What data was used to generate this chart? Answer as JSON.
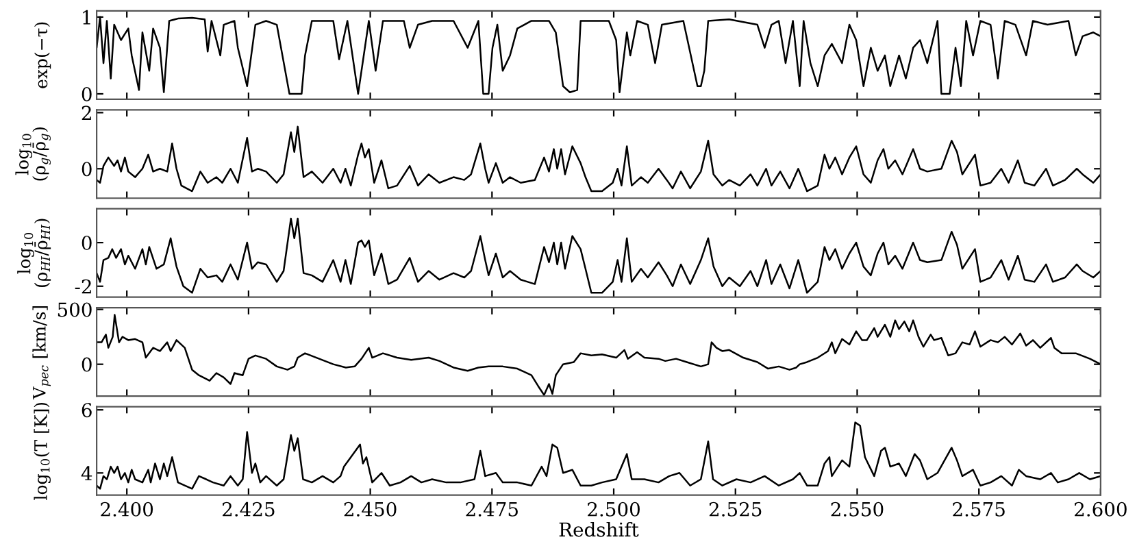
{
  "chart_data": [
    {
      "type": "line",
      "ylabel": "exp(−τ)",
      "xlim": [
        2.3938,
        2.6
      ],
      "ylim": [
        -0.07,
        1.08
      ],
      "yticks": [
        0,
        1
      ],
      "tick_labels": "y",
      "xticks": [
        {
          "value": 2.4,
          "label": null
        },
        {
          "value": 2.425,
          "label": null
        },
        {
          "value": 2.45,
          "label": null
        },
        {
          "value": 2.475,
          "label": null
        },
        {
          "value": 2.5,
          "label": null
        },
        {
          "value": 2.525,
          "label": null
        },
        {
          "value": 2.55,
          "label": null
        },
        {
          "value": 2.575,
          "label": null
        },
        {
          "value": 2.6,
          "label": null
        }
      ],
      "series": [
        {
          "color": "#000000",
          "x": [
            2.3938,
            2.3945,
            2.3952,
            2.3959,
            2.3967,
            2.3974,
            2.3988,
            2.4003,
            2.401,
            2.4025,
            2.4032,
            2.4046,
            2.4054,
            2.4068,
            2.4076,
            2.4087,
            2.4105,
            2.4134,
            2.416,
            2.4166,
            2.4174,
            2.4192,
            2.4199,
            2.4221,
            2.4228,
            2.4247,
            2.4264,
            2.4286,
            2.4308,
            2.4334,
            2.4359,
            2.4366,
            2.438,
            2.4424,
            2.4436,
            2.4453,
            2.4475,
            2.4497,
            2.4511,
            2.4526,
            2.4569,
            2.4581,
            2.4598,
            2.4627,
            2.4671,
            2.47,
            2.4722,
            2.4732,
            2.4743,
            2.4751,
            2.4761,
            2.4772,
            2.4787,
            2.4802,
            2.4831,
            2.4867,
            2.4881,
            2.4896,
            2.491,
            2.4925,
            2.4932,
            2.499,
            2.5005,
            2.5012,
            2.5027,
            2.5034,
            2.5048,
            2.507,
            2.5085,
            2.5099,
            2.5143,
            2.5172,
            2.5179,
            2.5186,
            2.5194,
            2.5237,
            2.5295,
            2.531,
            2.5324,
            2.5339,
            2.5353,
            2.5368,
            2.5382,
            2.539,
            2.5404,
            2.5419,
            2.5433,
            2.5448,
            2.5469,
            2.5484,
            2.5498,
            2.5513,
            2.5528,
            2.5542,
            2.5557,
            2.5568,
            2.5586,
            2.56,
            2.5615,
            2.5629,
            2.5644,
            2.5665,
            2.5673,
            2.569,
            2.5702,
            2.5713,
            2.5724,
            2.5738,
            2.5753,
            2.5774,
            2.5789,
            2.5803,
            2.5825,
            2.5847,
            2.5861,
            2.5891,
            2.5934,
            2.5949,
            2.5963,
            2.5985,
            2.6
          ],
          "values": [
            0.6,
            1.0,
            0.4,
            0.95,
            0.2,
            0.9,
            0.7,
            0.85,
            0.5,
            0.05,
            0.8,
            0.3,
            0.85,
            0.6,
            0.02,
            0.95,
            0.98,
            0.99,
            0.97,
            0.55,
            0.95,
            0.5,
            0.9,
            0.95,
            0.6,
            0.1,
            0.9,
            0.95,
            0.9,
            0,
            0,
            0.5,
            0.95,
            0.95,
            0.45,
            0.95,
            0,
            0.95,
            0.3,
            0.95,
            0.95,
            0.6,
            0.9,
            0.95,
            0.95,
            0.6,
            0.95,
            0,
            0,
            0.6,
            0.9,
            0.3,
            0.5,
            0.85,
            0.95,
            0.95,
            0.8,
            0.1,
            0.02,
            0.05,
            0.95,
            0.95,
            0.7,
            0.02,
            0.8,
            0.5,
            0.95,
            0.9,
            0.4,
            0.9,
            0.95,
            0.1,
            0.1,
            0.3,
            0.95,
            0.97,
            0.9,
            0.6,
            0.9,
            0.95,
            0.4,
            0.95,
            0.1,
            0.95,
            0.4,
            0.1,
            0.5,
            0.65,
            0.4,
            0.9,
            0.7,
            0.1,
            0.6,
            0.3,
            0.5,
            0.1,
            0.5,
            0.2,
            0.6,
            0.7,
            0.4,
            0.95,
            0,
            0,
            0.6,
            0.1,
            0.95,
            0.5,
            0.95,
            0.9,
            0.2,
            0.95,
            0.9,
            0.5,
            0.95,
            0.9,
            0.95,
            0.5,
            0.75,
            0.8,
            0.75
          ]
        }
      ]
    },
    {
      "type": "line",
      "ylabel": "log$_{10}$\n(ρ$_{g}$/ρ̄$_{g}$)",
      "xlim": [
        2.3938,
        2.6
      ],
      "ylim": [
        -1.05,
        2.1
      ],
      "yticks": [
        0,
        2
      ],
      "tick_labels": "y",
      "xticks": [
        {
          "value": 2.4,
          "label": null
        },
        {
          "value": 2.425,
          "label": null
        },
        {
          "value": 2.45,
          "label": null
        },
        {
          "value": 2.475,
          "label": null
        },
        {
          "value": 2.5,
          "label": null
        },
        {
          "value": 2.525,
          "label": null
        },
        {
          "value": 2.55,
          "label": null
        },
        {
          "value": 2.575,
          "label": null
        },
        {
          "value": 2.6,
          "label": null
        }
      ],
      "series": [
        {
          "color": "#000000",
          "x": [
            2.3938,
            2.3945,
            2.3952,
            2.3962,
            2.3974,
            2.3981,
            2.3988,
            2.3996,
            2.4003,
            2.4017,
            2.4032,
            2.4044,
            2.4054,
            2.4068,
            2.4083,
            2.4093,
            2.4102,
            2.4112,
            2.4134,
            2.4151,
            2.4166,
            2.4184,
            2.4196,
            2.4213,
            2.4228,
            2.4247,
            2.4257,
            2.4269,
            2.4286,
            2.4308,
            2.4322,
            2.4337,
            2.4344,
            2.4351,
            2.4363,
            2.438,
            2.4402,
            2.4424,
            2.4439,
            2.4449,
            2.446,
            2.4475,
            2.4482,
            2.4489,
            2.4497,
            2.4508,
            2.4523,
            2.4537,
            2.4555,
            2.4581,
            2.4598,
            2.462,
            2.4642,
            2.4671,
            2.4693,
            2.4707,
            2.4726,
            2.4736,
            2.4743,
            2.4758,
            2.4772,
            2.4787,
            2.4809,
            2.4838,
            2.4857,
            2.4867,
            2.4877,
            2.4884,
            2.4892,
            2.49,
            2.4915,
            2.4932,
            2.4942,
            2.4954,
            2.4976,
            2.4998,
            2.5008,
            2.5016,
            2.5027,
            2.5037,
            2.5056,
            2.507,
            2.5092,
            2.5109,
            2.5121,
            2.5138,
            2.5157,
            2.5179,
            2.5194,
            2.5205,
            2.5223,
            2.5237,
            2.5259,
            2.5281,
            2.5295,
            2.5313,
            2.5324,
            2.5342,
            2.5361,
            2.5379,
            2.5397,
            2.5419,
            2.5433,
            2.5443,
            2.5455,
            2.5469,
            2.5484,
            2.5498,
            2.5513,
            2.5528,
            2.5542,
            2.5554,
            2.5564,
            2.5578,
            2.5593,
            2.5615,
            2.5629,
            2.5644,
            2.5673,
            2.5694,
            2.5705,
            2.5716,
            2.5742,
            2.5753,
            2.5774,
            2.5796,
            2.5811,
            2.583,
            2.5844,
            2.5864,
            2.5888,
            2.5902,
            2.5927,
            2.5951,
            2.5963,
            2.5985,
            2.6
          ],
          "values": [
            -0.4,
            -0.5,
            0.1,
            0.4,
            0.1,
            0.3,
            -0.1,
            0.4,
            -0.1,
            -0.3,
            0.0,
            0.5,
            -0.1,
            0.0,
            -0.1,
            0.9,
            0.0,
            -0.6,
            -0.8,
            -0.1,
            -0.5,
            -0.3,
            -0.5,
            0.0,
            -0.5,
            1.1,
            -0.1,
            0.0,
            -0.1,
            -0.5,
            -0.2,
            1.3,
            0.6,
            1.5,
            -0.3,
            -0.1,
            -0.5,
            0.0,
            -0.5,
            0.0,
            -0.6,
            0.5,
            0.9,
            0.4,
            0.7,
            -0.5,
            0.3,
            -0.7,
            -0.6,
            0.1,
            -0.6,
            -0.2,
            -0.5,
            -0.3,
            -0.4,
            -0.2,
            0.9,
            0.0,
            -0.5,
            0.2,
            -0.5,
            -0.3,
            -0.5,
            -0.4,
            0.4,
            -0.1,
            0.7,
            0.0,
            0.7,
            -0.2,
            0.8,
            0.2,
            -0.3,
            -0.8,
            -0.8,
            -0.5,
            0.0,
            -0.6,
            0.8,
            -0.6,
            -0.3,
            -0.5,
            0.0,
            -0.4,
            -0.7,
            -0.1,
            -0.7,
            -0.1,
            1.0,
            -0.2,
            -0.6,
            -0.4,
            -0.6,
            -0.2,
            -0.6,
            0.0,
            -0.6,
            -0.1,
            -0.7,
            0.0,
            -0.8,
            -0.6,
            0.5,
            0.0,
            0.4,
            -0.2,
            0.4,
            0.8,
            -0.2,
            -0.5,
            0.3,
            0.7,
            0.0,
            0.3,
            -0.2,
            0.7,
            0.0,
            -0.1,
            0.0,
            1.0,
            0.6,
            -0.2,
            0.5,
            -0.6,
            -0.5,
            0.0,
            -0.5,
            0.3,
            -0.5,
            -0.6,
            0.0,
            -0.6,
            -0.4,
            0.0,
            -0.2,
            -0.5,
            -0.2
          ]
        }
      ]
    },
    {
      "type": "line",
      "ylabel": "log$_{10}$\n(ρ$_{HI}$/ρ̄$_{HI}$)",
      "xlim": [
        2.3938,
        2.6
      ],
      "ylim": [
        -2.5,
        1.55
      ],
      "yticks": [
        -2,
        0
      ],
      "tick_labels": "y",
      "xticks": [
        {
          "value": 2.4,
          "label": null
        },
        {
          "value": 2.425,
          "label": null
        },
        {
          "value": 2.45,
          "label": null
        },
        {
          "value": 2.475,
          "label": null
        },
        {
          "value": 2.5,
          "label": null
        },
        {
          "value": 2.525,
          "label": null
        },
        {
          "value": 2.55,
          "label": null
        },
        {
          "value": 2.575,
          "label": null
        },
        {
          "value": 2.6,
          "label": null
        }
      ],
      "series": [
        {
          "color": "#000000",
          "x": [
            2.3938,
            2.3945,
            2.3952,
            2.3962,
            2.397,
            2.3978,
            2.3988,
            2.3996,
            2.4003,
            2.4017,
            2.4032,
            2.4039,
            2.4046,
            2.4061,
            2.4076,
            2.409,
            2.4102,
            2.4116,
            2.4134,
            2.4151,
            2.4166,
            2.4184,
            2.4196,
            2.4213,
            2.4228,
            2.4247,
            2.4257,
            2.4269,
            2.4286,
            2.4308,
            2.4322,
            2.4337,
            2.4344,
            2.4351,
            2.4363,
            2.438,
            2.4402,
            2.4424,
            2.4439,
            2.4449,
            2.446,
            2.4475,
            2.4482,
            2.4489,
            2.4497,
            2.4508,
            2.4523,
            2.4537,
            2.4555,
            2.4581,
            2.4598,
            2.462,
            2.4642,
            2.4671,
            2.4693,
            2.4707,
            2.4726,
            2.4736,
            2.4743,
            2.4758,
            2.4772,
            2.4787,
            2.4809,
            2.4838,
            2.4857,
            2.4867,
            2.4877,
            2.4884,
            2.4892,
            2.49,
            2.4915,
            2.4932,
            2.4942,
            2.4954,
            2.4976,
            2.4998,
            2.5008,
            2.5016,
            2.5027,
            2.5037,
            2.5056,
            2.507,
            2.5092,
            2.5109,
            2.5121,
            2.5138,
            2.5157,
            2.5179,
            2.5194,
            2.5205,
            2.5223,
            2.5237,
            2.5259,
            2.5281,
            2.5295,
            2.5313,
            2.5324,
            2.5342,
            2.5361,
            2.5379,
            2.5397,
            2.5419,
            2.5433,
            2.5443,
            2.5455,
            2.5469,
            2.5484,
            2.5498,
            2.5513,
            2.5528,
            2.5542,
            2.5554,
            2.5564,
            2.5578,
            2.5593,
            2.5615,
            2.5629,
            2.5644,
            2.5673,
            2.5694,
            2.5705,
            2.5716,
            2.5742,
            2.5753,
            2.5774,
            2.5796,
            2.5811,
            2.583,
            2.5844,
            2.5864,
            2.5888,
            2.5902,
            2.5927,
            2.5951,
            2.5963,
            2.5985,
            2.6
          ],
          "values": [
            -1.4,
            -1.8,
            -0.8,
            -0.7,
            -0.3,
            -0.7,
            -0.3,
            -1.0,
            -0.6,
            -1.2,
            -0.3,
            -1.0,
            -0.2,
            -1.2,
            -1.0,
            0.2,
            -1.1,
            -2.0,
            -2.3,
            -1.2,
            -1.6,
            -1.5,
            -1.8,
            -1.0,
            -1.7,
            0.0,
            -1.2,
            -0.9,
            -1.0,
            -1.8,
            -1.3,
            1.1,
            0.2,
            1.1,
            -1.4,
            -1.5,
            -1.8,
            -0.8,
            -1.8,
            -0.8,
            -1.9,
            0.0,
            0.1,
            -0.2,
            0.1,
            -1.5,
            -0.5,
            -1.9,
            -1.7,
            -0.7,
            -1.8,
            -1.3,
            -1.7,
            -1.4,
            -1.6,
            -1.3,
            0.3,
            -0.8,
            -1.5,
            -0.5,
            -1.6,
            -1.3,
            -1.7,
            -1.9,
            -0.2,
            -0.9,
            0.0,
            -1.0,
            0.0,
            -1.2,
            0.3,
            -0.3,
            -1.2,
            -2.3,
            -2.3,
            -1.8,
            -0.8,
            -1.8,
            0.2,
            -1.8,
            -1.2,
            -1.6,
            -0.9,
            -1.5,
            -2.0,
            -1.0,
            -1.9,
            -0.8,
            0.2,
            -1.1,
            -2.0,
            -1.6,
            -2.0,
            -1.3,
            -2.0,
            -0.8,
            -1.9,
            -1.0,
            -2.1,
            -0.8,
            -2.3,
            -1.8,
            -0.2,
            -0.8,
            -0.3,
            -1.2,
            -0.5,
            0.0,
            -1.1,
            -1.5,
            -0.5,
            0.0,
            -1.0,
            -0.6,
            -1.2,
            0.0,
            -0.8,
            -0.9,
            -0.8,
            0.5,
            -0.1,
            -1.2,
            -0.3,
            -1.8,
            -1.6,
            -0.8,
            -1.7,
            -0.6,
            -1.7,
            -1.8,
            -1.0,
            -1.8,
            -1.6,
            -1.0,
            -1.3,
            -1.6,
            -1.3
          ]
        }
      ]
    },
    {
      "type": "line",
      "ylabel": "V$_{pec}$ [km/s]",
      "xlim": [
        2.3938,
        2.6
      ],
      "ylim": [
        -290,
        515
      ],
      "yticks": [
        0,
        500
      ],
      "tick_labels": "y",
      "xticks": [
        {
          "value": 2.4,
          "label": null
        },
        {
          "value": 2.425,
          "label": null
        },
        {
          "value": 2.45,
          "label": null
        },
        {
          "value": 2.475,
          "label": null
        },
        {
          "value": 2.5,
          "label": null
        },
        {
          "value": 2.525,
          "label": null
        },
        {
          "value": 2.55,
          "label": null
        },
        {
          "value": 2.575,
          "label": null
        },
        {
          "value": 2.6,
          "label": null
        }
      ],
      "series": [
        {
          "color": "#000000",
          "x": [
            2.3938,
            2.3948,
            2.3957,
            2.3962,
            2.3971,
            2.3975,
            2.3984,
            2.3991,
            2.4003,
            2.4017,
            2.4032,
            2.4039,
            2.4054,
            2.4068,
            2.4083,
            2.409,
            2.4102,
            2.4119,
            2.4134,
            2.4148,
            2.417,
            2.4184,
            2.4199,
            2.4213,
            2.4221,
            2.4238,
            2.425,
            2.4264,
            2.4286,
            2.4308,
            2.433,
            2.4344,
            2.4351,
            2.4366,
            2.4395,
            2.4424,
            2.445,
            2.4468,
            2.4482,
            2.4497,
            2.4504,
            2.4526,
            2.4555,
            2.4584,
            2.462,
            2.4642,
            2.4671,
            2.47,
            2.4722,
            2.4743,
            2.4772,
            2.4802,
            2.4831,
            2.4845,
            2.4857,
            2.4867,
            2.4874,
            2.4881,
            2.4896,
            2.4918,
            2.4932,
            2.4954,
            2.4976,
            2.5005,
            2.5022,
            2.5029,
            2.5048,
            2.5063,
            2.5092,
            2.5106,
            2.5128,
            2.515,
            2.5179,
            2.5194,
            2.5201,
            2.5211,
            2.5223,
            2.5237,
            2.5266,
            2.5295,
            2.5317,
            2.5339,
            2.5361,
            2.5375,
            2.5382,
            2.5397,
            2.5419,
            2.544,
            2.5448,
            2.5455,
            2.5469,
            2.5484,
            2.5498,
            2.551,
            2.552,
            2.5535,
            2.5542,
            2.5557,
            2.5568,
            2.5578,
            2.5586,
            2.5597,
            2.5607,
            2.5615,
            2.5626,
            2.5636,
            2.5651,
            2.5658,
            2.5673,
            2.5687,
            2.5702,
            2.5716,
            2.5731,
            2.5742,
            2.5753,
            2.5774,
            2.5789,
            2.5803,
            2.5818,
            2.5835,
            2.5847,
            2.5861,
            2.5876,
            2.5898,
            2.5905,
            2.592,
            2.5949,
            2.5978,
            2.6
          ],
          "values": [
            200,
            200,
            270,
            150,
            250,
            450,
            200,
            250,
            220,
            230,
            200,
            60,
            150,
            120,
            200,
            120,
            220,
            150,
            -50,
            -100,
            -150,
            -80,
            -120,
            -180,
            -80,
            -100,
            50,
            80,
            50,
            -20,
            -50,
            -20,
            60,
            100,
            50,
            0,
            -30,
            -20,
            50,
            150,
            60,
            100,
            60,
            40,
            60,
            30,
            -30,
            -60,
            -30,
            -20,
            -20,
            -40,
            -100,
            -200,
            -280,
            -180,
            -270,
            -100,
            0,
            20,
            100,
            80,
            90,
            60,
            130,
            50,
            110,
            60,
            50,
            30,
            50,
            20,
            -20,
            0,
            200,
            150,
            120,
            130,
            60,
            20,
            -40,
            -20,
            -50,
            -30,
            0,
            20,
            60,
            120,
            200,
            100,
            230,
            180,
            300,
            220,
            220,
            330,
            250,
            360,
            250,
            400,
            320,
            390,
            300,
            400,
            250,
            160,
            270,
            220,
            240,
            80,
            100,
            200,
            180,
            300,
            160,
            220,
            200,
            250,
            180,
            280,
            170,
            220,
            150,
            240,
            150,
            100,
            100,
            50,
            0
          ]
        }
      ]
    },
    {
      "type": "line",
      "ylabel": "log$_{10}$(T [K])",
      "xlabel": "Redshift",
      "xlim": [
        2.3938,
        2.6
      ],
      "ylim": [
        3.3,
        6.1
      ],
      "yticks": [
        4,
        6
      ],
      "xticks": [
        {
          "value": 2.4,
          "label": "2.400"
        },
        {
          "value": 2.425,
          "label": "2.425"
        },
        {
          "value": 2.45,
          "label": "2.450"
        },
        {
          "value": 2.475,
          "label": "2.475"
        },
        {
          "value": 2.5,
          "label": "2.500"
        },
        {
          "value": 2.525,
          "label": "2.525"
        },
        {
          "value": 2.55,
          "label": "2.550"
        },
        {
          "value": 2.575,
          "label": "2.575"
        },
        {
          "value": 2.6,
          "label": "2.600"
        }
      ],
      "series": [
        {
          "color": "#000000",
          "x": [
            2.3938,
            2.3945,
            2.3952,
            2.3959,
            2.3967,
            2.3974,
            2.3981,
            2.3988,
            2.3996,
            2.4003,
            2.401,
            2.4017,
            2.4032,
            2.4044,
            2.4049,
            2.4058,
            2.4068,
            2.4076,
            2.4083,
            2.4093,
            2.4105,
            2.4119,
            2.4134,
            2.4148,
            2.4163,
            2.4177,
            2.4199,
            2.4213,
            2.4228,
            2.4238,
            2.4247,
            2.4257,
            2.4264,
            2.4274,
            2.4286,
            2.4308,
            2.4322,
            2.4337,
            2.4344,
            2.4351,
            2.4362,
            2.438,
            2.4402,
            2.4424,
            2.4439,
            2.4446,
            2.4479,
            2.4485,
            2.4492,
            2.4504,
            2.4523,
            2.454,
            2.4562,
            2.4584,
            2.4605,
            2.4627,
            2.4656,
            2.4685,
            2.4714,
            2.4726,
            2.4736,
            2.4758,
            2.4772,
            2.4802,
            2.4831,
            2.4852,
            2.4862,
            2.4874,
            2.4884,
            2.4896,
            2.4915,
            2.4932,
            2.4954,
            2.4976,
            2.5005,
            2.5027,
            2.5037,
            2.5063,
            2.5092,
            2.5114,
            2.5135,
            2.5157,
            2.5179,
            2.5194,
            2.5204,
            2.5223,
            2.5252,
            2.5281,
            2.531,
            2.5339,
            2.5368,
            2.5382,
            2.5397,
            2.5419,
            2.5433,
            2.5443,
            2.5448,
            2.5469,
            2.5484,
            2.5496,
            2.5506,
            2.5516,
            2.5535,
            2.5549,
            2.5557,
            2.5568,
            2.5586,
            2.56,
            2.5618,
            2.5629,
            2.5644,
            2.5665,
            2.5694,
            2.5705,
            2.5716,
            2.5738,
            2.5753,
            2.5774,
            2.5796,
            2.5818,
            2.5832,
            2.5847,
            2.5876,
            2.5898,
            2.5912,
            2.5934,
            2.5956,
            2.5978,
            2.6
          ],
          "values": [
            3.6,
            3.5,
            3.9,
            3.8,
            4.2,
            4.0,
            4.2,
            3.8,
            4.0,
            3.7,
            4.1,
            3.8,
            3.7,
            4.1,
            3.7,
            4.3,
            3.8,
            4.3,
            3.9,
            4.5,
            3.7,
            3.6,
            3.5,
            3.9,
            3.8,
            3.7,
            3.6,
            3.9,
            3.6,
            3.8,
            5.3,
            4.0,
            4.3,
            3.7,
            3.9,
            3.6,
            3.8,
            5.2,
            4.7,
            5.1,
            3.8,
            3.7,
            3.9,
            3.7,
            3.9,
            4.2,
            4.9,
            4.3,
            4.5,
            3.7,
            4.0,
            3.6,
            3.7,
            3.9,
            3.7,
            3.8,
            3.7,
            3.7,
            3.8,
            4.7,
            3.9,
            4.0,
            3.7,
            3.7,
            3.6,
            4.2,
            3.9,
            4.9,
            4.8,
            4.0,
            4.1,
            3.6,
            3.6,
            3.7,
            3.8,
            4.6,
            3.8,
            3.8,
            3.7,
            3.9,
            4.0,
            3.6,
            3.8,
            5.0,
            3.8,
            3.6,
            3.8,
            3.7,
            3.9,
            3.6,
            3.8,
            4.0,
            3.6,
            3.6,
            4.3,
            4.5,
            3.9,
            4.4,
            4.2,
            5.6,
            5.5,
            4.5,
            3.9,
            4.7,
            4.8,
            4.2,
            4.3,
            3.9,
            4.6,
            4.4,
            3.8,
            4.0,
            4.8,
            4.4,
            3.9,
            4.1,
            3.6,
            3.7,
            3.9,
            3.6,
            4.1,
            3.9,
            3.8,
            4.0,
            3.7,
            3.8,
            4.0,
            3.8,
            3.9
          ]
        }
      ]
    }
  ]
}
